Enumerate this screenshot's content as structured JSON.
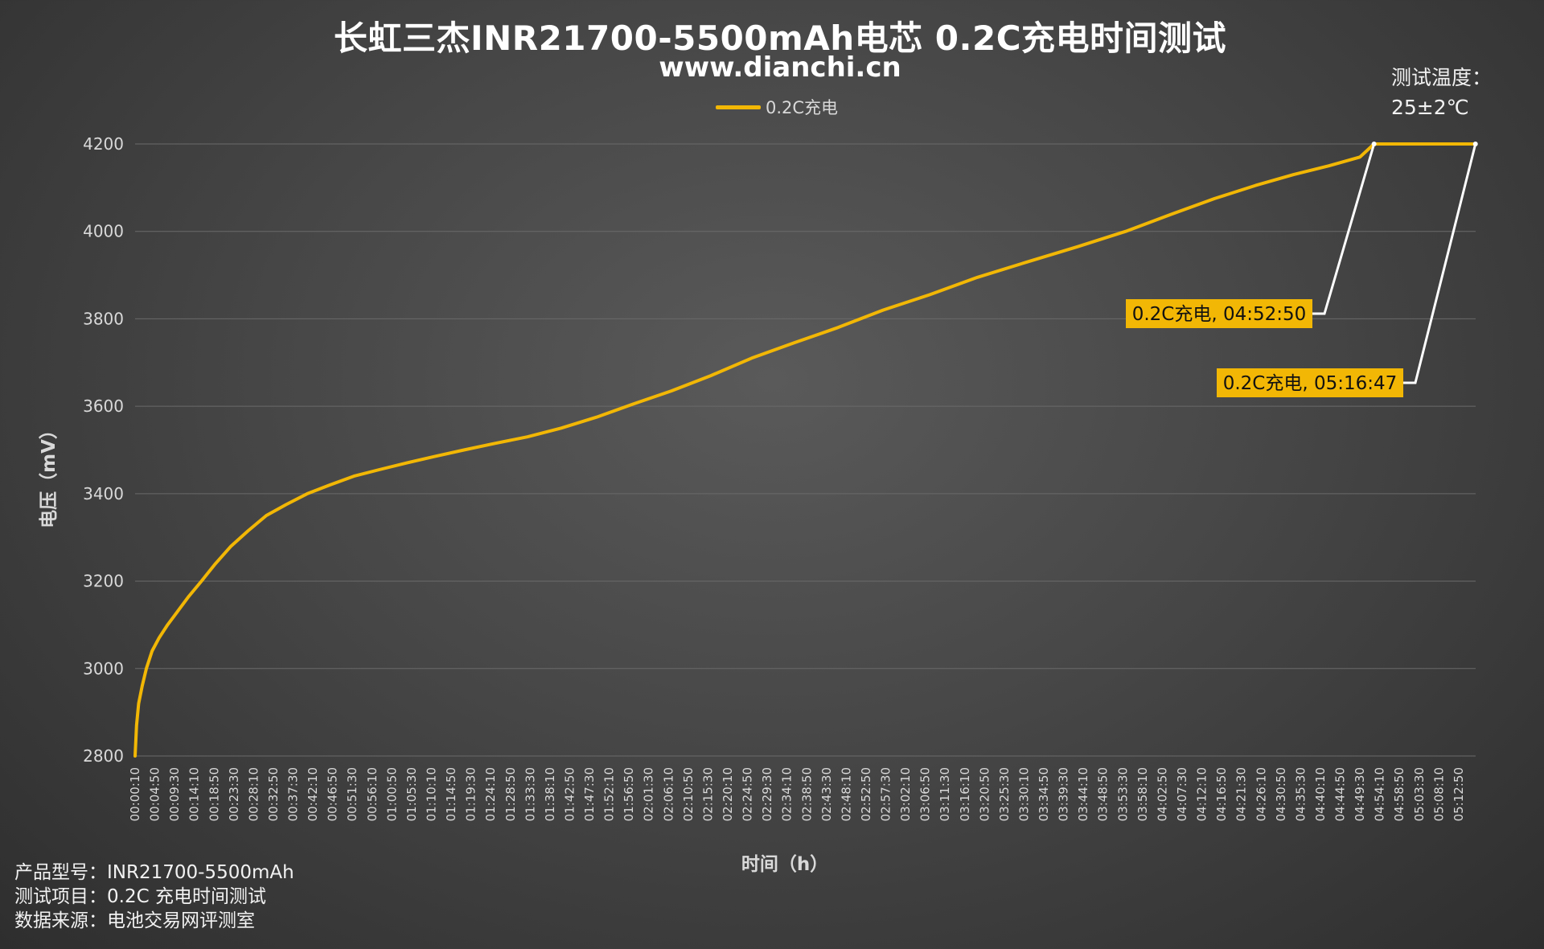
{
  "title": "长虹三杰INR21700-5500mAh电芯 0.2C充电时间测试",
  "subtitle": "www.dianchi.cn",
  "legend_label": "0.2C充电",
  "temperature": {
    "label": "测试温度：",
    "value": "25±2℃"
  },
  "footer": {
    "product_model": "产品型号：INR21700-5500mAh",
    "test_item": "测试项目：0.2C 充电时间测试",
    "data_source": "数据来源：电池交易网评测室"
  },
  "colors": {
    "series": "#f2b705",
    "callout_line": "#ffffff",
    "gridline": "#6a6a6a"
  },
  "chart_data": {
    "type": "line",
    "title": "长虹三杰INR21700-5500mAh电芯 0.2C充电时间测试",
    "xlabel": "时间（h）",
    "ylabel": "电压（mV）",
    "ylim": [
      2800,
      4200
    ],
    "yticks": [
      2800,
      3000,
      3200,
      3400,
      3600,
      3800,
      4000,
      4200
    ],
    "xlim_seconds": [
      10,
      19010
    ],
    "x_unit": "time (hh:mm:ss)",
    "xtick_labels": [
      "00:00:10",
      "00:04:50",
      "00:09:30",
      "00:14:10",
      "00:18:50",
      "00:23:30",
      "00:28:10",
      "00:32:50",
      "00:37:30",
      "00:42:10",
      "00:46:50",
      "00:51:30",
      "00:56:10",
      "01:00:50",
      "01:05:30",
      "01:10:10",
      "01:14:50",
      "01:19:30",
      "01:24:10",
      "01:28:50",
      "01:33:30",
      "01:38:10",
      "01:42:50",
      "01:47:30",
      "01:52:10",
      "01:56:50",
      "02:01:30",
      "02:06:10",
      "02:10:50",
      "02:15:30",
      "02:20:10",
      "02:24:50",
      "02:29:30",
      "02:34:10",
      "02:38:50",
      "02:43:30",
      "02:48:10",
      "02:52:50",
      "02:57:30",
      "03:02:10",
      "03:06:50",
      "03:11:30",
      "03:16:10",
      "03:20:50",
      "03:25:30",
      "03:30:10",
      "03:34:50",
      "03:39:30",
      "03:44:10",
      "03:48:50",
      "03:53:30",
      "03:58:10",
      "04:02:50",
      "04:07:30",
      "04:12:10",
      "04:16:50",
      "04:21:30",
      "04:26:10",
      "04:30:50",
      "04:35:30",
      "04:40:10",
      "04:44:50",
      "04:49:30",
      "04:54:10",
      "04:58:50",
      "05:03:30",
      "05:08:10",
      "05:12:50"
    ],
    "grid": true,
    "legend_position": "top",
    "series": [
      {
        "name": "0.2C充电",
        "x": [
          "00:00:10",
          "00:00:30",
          "00:01:00",
          "00:01:50",
          "00:02:50",
          "00:04:10",
          "00:05:50",
          "00:07:50",
          "00:10:10",
          "00:12:50",
          "00:15:50",
          "00:19:10",
          "00:22:50",
          "00:26:50",
          "00:31:10",
          "00:35:50",
          "00:40:50",
          "00:46:10",
          "00:51:50",
          "00:57:50",
          "01:04:10",
          "01:10:50",
          "01:17:50",
          "01:25:10",
          "01:32:50",
          "01:40:50",
          "01:49:10",
          "01:57:50",
          "02:06:50",
          "02:16:10",
          "02:25:50",
          "02:35:50",
          "02:46:10",
          "02:56:50",
          "03:07:50",
          "03:19:10",
          "03:30:50",
          "03:42:50",
          "03:54:10",
          "04:05:10",
          "04:15:10",
          "04:24:50",
          "04:33:50",
          "04:42:10",
          "04:49:30",
          "04:52:50",
          "05:16:47"
        ],
        "values": [
          2800,
          2870,
          2920,
          2960,
          3000,
          3040,
          3070,
          3100,
          3130,
          3165,
          3200,
          3240,
          3280,
          3315,
          3350,
          3375,
          3400,
          3420,
          3440,
          3455,
          3470,
          3485,
          3500,
          3515,
          3530,
          3550,
          3575,
          3605,
          3635,
          3670,
          3710,
          3745,
          3780,
          3820,
          3855,
          3895,
          3930,
          3965,
          4000,
          4040,
          4075,
          4105,
          4130,
          4150,
          4170,
          4200,
          4200
        ]
      }
    ],
    "annotations": [
      {
        "text": "0.2C充电, 04:52:50",
        "x": "04:52:50",
        "y": 4200
      },
      {
        "text": "0.2C充电, 05:16:47",
        "x": "05:16:47",
        "y": 4200
      }
    ]
  }
}
